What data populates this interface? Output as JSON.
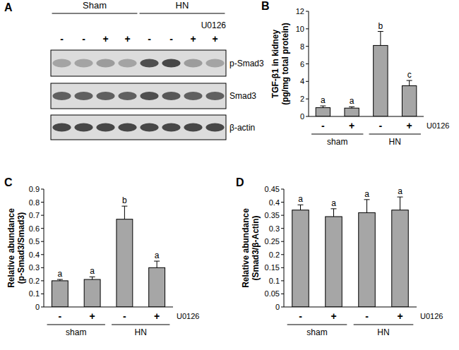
{
  "chart_data": [
    {
      "type": "blot",
      "panel": "A",
      "groups": [
        {
          "name": "Sham",
          "lanes": [
            0,
            1,
            2,
            3
          ]
        },
        {
          "name": "HN",
          "lanes": [
            4,
            5,
            6,
            7
          ]
        }
      ],
      "treatment": {
        "name": "U0126",
        "values": [
          "-",
          "-",
          "+",
          "+",
          "-",
          "-",
          "+",
          "+"
        ]
      },
      "series": [
        {
          "name": "p-Smad3",
          "values": [
            0.3,
            0.3,
            0.35,
            0.3,
            0.8,
            0.85,
            0.35,
            0.3
          ]
        },
        {
          "name": "Smad3",
          "values": [
            0.7,
            0.7,
            0.7,
            0.7,
            0.8,
            0.75,
            0.7,
            0.7
          ]
        },
        {
          "name": "β-actin",
          "values": [
            0.85,
            0.85,
            0.85,
            0.85,
            0.85,
            0.85,
            0.85,
            0.85
          ]
        }
      ]
    },
    {
      "type": "bar",
      "panel": "B",
      "y_label": [
        "TGF-β1 in kidney",
        "(pg/mg total protein)"
      ],
      "categories": [
        "-",
        "+",
        "-",
        "+"
      ],
      "groups": [
        {
          "name": "sham",
          "categories": [
            0,
            1
          ]
        },
        {
          "name": "HN",
          "categories": [
            2,
            3
          ]
        }
      ],
      "treatment": "U0126",
      "values": [
        1.0,
        0.95,
        8.1,
        3.5
      ],
      "errors": [
        0.2,
        0.15,
        1.6,
        0.6
      ],
      "annotations": [
        "a",
        "a",
        "b",
        "c"
      ],
      "color": "#a6a6a6",
      "ylim": [
        0,
        12
      ],
      "yticks": [
        0,
        2,
        4,
        6,
        8,
        10,
        12
      ]
    },
    {
      "type": "bar",
      "panel": "C",
      "y_label": [
        "Relative abundance",
        "(p-Smad3/Smad3)"
      ],
      "categories": [
        "-",
        "+",
        "-",
        "+"
      ],
      "groups": [
        {
          "name": "sham",
          "categories": [
            0,
            1
          ]
        },
        {
          "name": "HN",
          "categories": [
            2,
            3
          ]
        }
      ],
      "treatment": "U0126",
      "values": [
        0.2,
        0.21,
        0.67,
        0.3
      ],
      "errors": [
        0.01,
        0.02,
        0.1,
        0.05
      ],
      "annotations": [
        "a",
        "a",
        "b",
        "a"
      ],
      "color": "#a6a6a6",
      "ylim": [
        0,
        0.9
      ],
      "yticks": [
        0,
        0.1,
        0.2,
        0.3,
        0.4,
        0.5,
        0.6,
        0.7,
        0.8,
        0.9
      ]
    },
    {
      "type": "bar",
      "panel": "D",
      "y_label": [
        "Relative abundance",
        "(Smad3/β-Actin)"
      ],
      "categories": [
        "-",
        "+",
        "-",
        "+"
      ],
      "groups": [
        {
          "name": "sham",
          "categories": [
            0,
            1
          ]
        },
        {
          "name": "HN",
          "categories": [
            2,
            3
          ]
        }
      ],
      "treatment": "U0126",
      "values": [
        0.37,
        0.345,
        0.36,
        0.37
      ],
      "errors": [
        0.02,
        0.03,
        0.05,
        0.05
      ],
      "annotations": [
        "a",
        "a",
        "a",
        "a"
      ],
      "color": "#a6a6a6",
      "ylim": [
        0,
        0.45
      ],
      "yticks": [
        0,
        0.05,
        0.1,
        0.15,
        0.2,
        0.25,
        0.3,
        0.35,
        0.4,
        0.45
      ]
    }
  ]
}
